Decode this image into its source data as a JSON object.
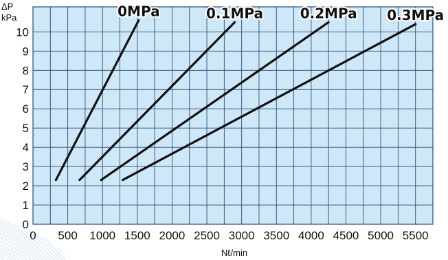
{
  "chart_data": {
    "type": "line",
    "title": "",
    "xlabel": "Nℓ/min",
    "ylabel_line1": "ΔP",
    "ylabel_line2": "kPa",
    "xlim": [
      0,
      5750
    ],
    "ylim": [
      0,
      11.3
    ],
    "x_ticks": [
      0,
      500,
      1000,
      1500,
      2000,
      2500,
      3000,
      3500,
      4000,
      4500,
      5000,
      5500
    ],
    "y_ticks": [
      0,
      1,
      2,
      3,
      4,
      5,
      6,
      7,
      8,
      9,
      10
    ],
    "x_grid_step": 250,
    "grid": true,
    "plot_background": "#cfe8f7",
    "grid_color": "#2b4a7a",
    "line_color": "#111111",
    "series": [
      {
        "name": "0MPa",
        "x": [
          330,
          1520
        ],
        "y": [
          2.3,
          10.6
        ]
      },
      {
        "name": "0.1MPa",
        "x": [
          670,
          2900
        ],
        "y": [
          2.3,
          10.5
        ]
      },
      {
        "name": "0.2MPa",
        "x": [
          980,
          4250
        ],
        "y": [
          2.3,
          10.5
        ]
      },
      {
        "name": "0.3MPa",
        "x": [
          1290,
          5500
        ],
        "y": [
          2.3,
          10.4
        ]
      }
    ]
  }
}
